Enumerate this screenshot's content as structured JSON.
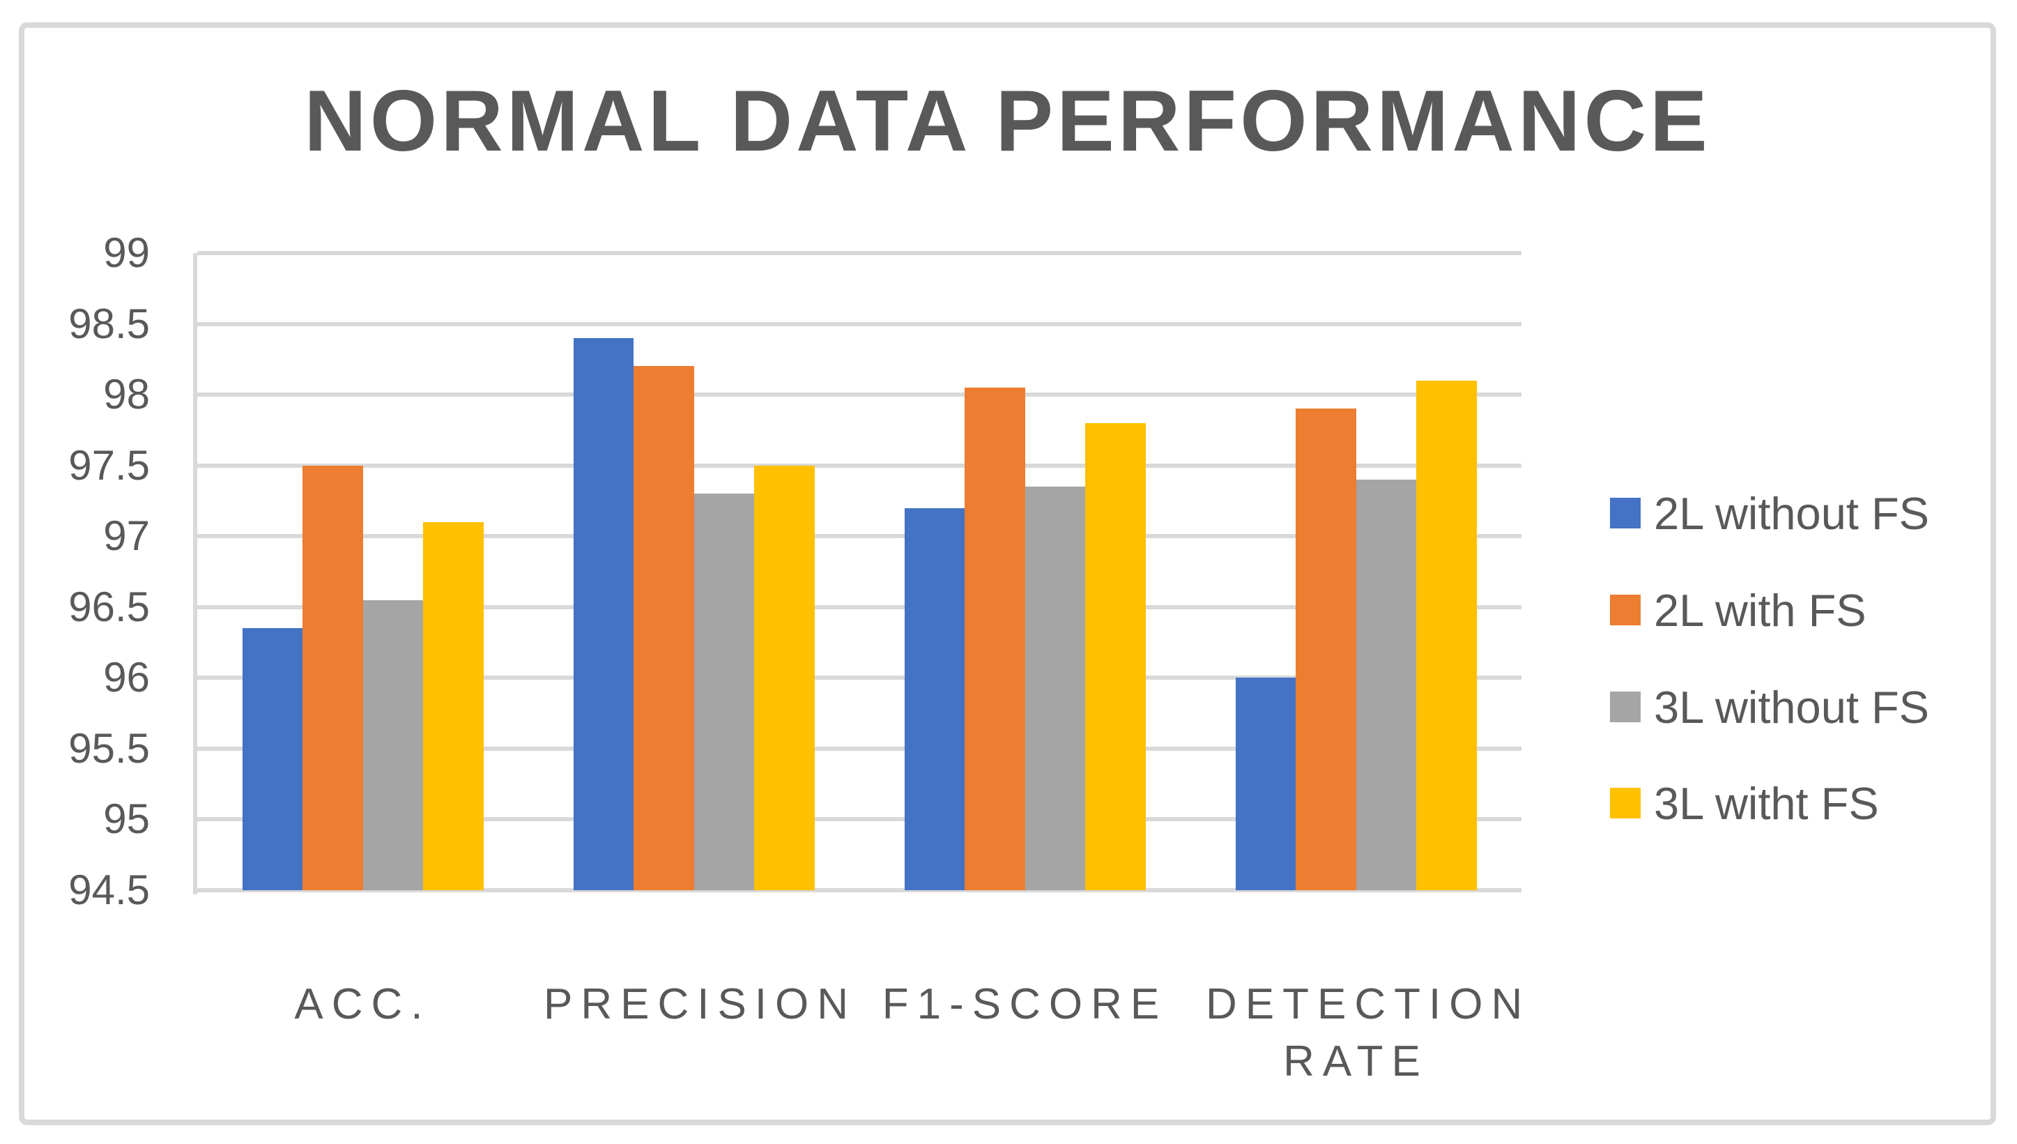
{
  "title": "NORMAL DATA PERFORMANCE",
  "chart_data": {
    "type": "bar",
    "title": "NORMAL DATA PERFORMANCE",
    "categories": [
      "ACC.",
      "PRECISION",
      "F1-SCORE",
      "DETECTION RATE"
    ],
    "series": [
      {
        "name": "2L without FS",
        "color": "#4472C4",
        "values": [
          96.35,
          98.4,
          97.2,
          96.0
        ]
      },
      {
        "name": "2L with FS",
        "color": "#ED7D31",
        "values": [
          97.5,
          98.2,
          98.05,
          97.9
        ]
      },
      {
        "name": "3L without FS",
        "color": "#A5A5A5",
        "values": [
          96.55,
          97.3,
          97.35,
          97.4
        ]
      },
      {
        "name": "3L witht FS",
        "color": "#FFC000",
        "values": [
          97.1,
          97.5,
          97.8,
          98.1
        ]
      }
    ],
    "ylim": [
      94.5,
      99
    ],
    "ytick_step": 0.5,
    "yticks": [
      99,
      98.5,
      98,
      97.5,
      97,
      96.5,
      96,
      95.5,
      95,
      94.5
    ],
    "grid": true,
    "legend_position": "right",
    "colors": {
      "text": "#595959",
      "gridline": "#D9D9D9",
      "frame_border": "#D9D9D9",
      "background": "#FFFFFF"
    }
  }
}
